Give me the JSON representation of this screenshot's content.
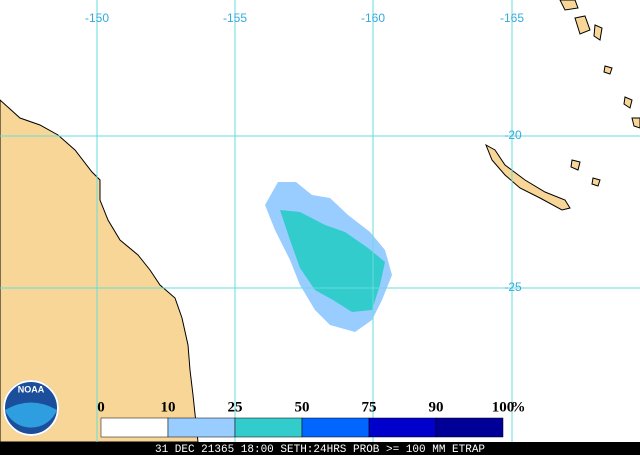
{
  "map": {
    "longitude_labels": [
      "-150",
      "-155",
      "-160",
      "-165"
    ],
    "latitude_labels": [
      "-20",
      "-25"
    ],
    "logo": "NOAA",
    "legend": {
      "labels": [
        "0",
        "10",
        "25",
        "50",
        "75",
        "90",
        "100"
      ],
      "unit": "%",
      "colors": [
        "#ffffff",
        "#99ccff",
        "#33cccc",
        "#0066ff",
        "#0000cc",
        "#000099"
      ]
    },
    "footer": "31 DEC 21365 18:00 SETH:24HRS PROB >= 100 MM ETRAP"
  }
}
